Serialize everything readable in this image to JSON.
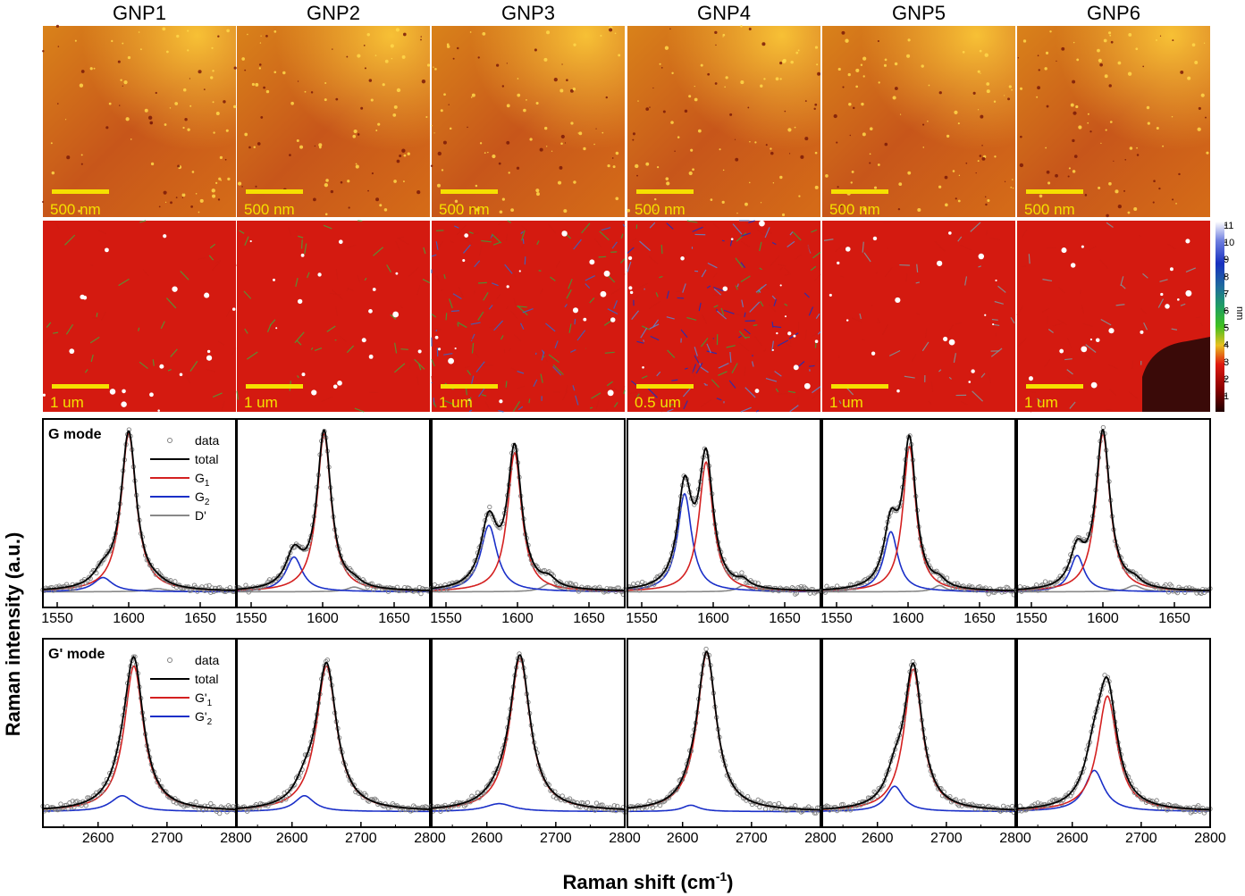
{
  "figure": {
    "columns": [
      "GNP1",
      "GNP2",
      "GNP3",
      "GNP4",
      "GNP5",
      "GNP6"
    ],
    "afm_scale_bars": [
      "500 nm",
      "500 nm",
      "500 nm",
      "500 nm",
      "500 nm",
      "500 nm"
    ],
    "height_scale_bars": [
      "1 um",
      "1 um",
      "1 um",
      "0.5 um",
      "1 um",
      "1 um"
    ],
    "colorbar": {
      "unit": "nm",
      "ticks": [
        "1",
        "2",
        "3",
        "4",
        "5",
        "6",
        "7",
        "8",
        "9",
        "10",
        "11"
      ]
    },
    "y_axis_label": "Raman intensity (a.u.)",
    "x_axis_label_main": "Raman shift (cm",
    "x_axis_label_sup": "-1",
    "x_axis_label_end": ")"
  },
  "chart_data": [
    {
      "type": "line",
      "title": "G mode",
      "xlim": [
        1540,
        1675
      ],
      "xticks": [
        1550,
        1600,
        1650
      ],
      "legend": [
        {
          "label": "data",
          "sub": "",
          "color": "#808080",
          "marker": "circle"
        },
        {
          "label": "total",
          "sub": "",
          "color": "#000000"
        },
        {
          "label": "G",
          "sub": "1",
          "color": "#d42020"
        },
        {
          "label": "G",
          "sub": "2",
          "color": "#1a2fc8"
        },
        {
          "label": "D'",
          "sub": "",
          "color": "#888888"
        }
      ],
      "legend_position": "top-right",
      "panels": [
        {
          "name": "GNP1",
          "g1": {
            "center": 1600,
            "amp": 1.0,
            "width": 6.5
          },
          "g2": {
            "center": 1582,
            "amp": 0.09,
            "width": 8
          },
          "dprime": {
            "center": 1620,
            "amp": 0.02,
            "width": 8
          }
        },
        {
          "name": "GNP2",
          "g1": {
            "center": 1601,
            "amp": 1.0,
            "width": 6
          },
          "g2": {
            "center": 1580,
            "amp": 0.22,
            "width": 7
          },
          "dprime": {
            "center": 1622,
            "amp": 0.03,
            "width": 6
          }
        },
        {
          "name": "GNP3",
          "g1": {
            "center": 1598,
            "amp": 0.88,
            "width": 6
          },
          "g2": {
            "center": 1580,
            "amp": 0.42,
            "width": 7
          },
          "dprime": {
            "center": 1622,
            "amp": 0.05,
            "width": 6
          }
        },
        {
          "name": "GNP4",
          "g1": {
            "center": 1595,
            "amp": 0.82,
            "width": 6
          },
          "g2": {
            "center": 1580,
            "amp": 0.62,
            "width": 6
          },
          "dprime": {
            "center": 1621,
            "amp": 0.04,
            "width": 5
          }
        },
        {
          "name": "GNP5",
          "g1": {
            "center": 1601,
            "amp": 0.92,
            "width": 5.5
          },
          "g2": {
            "center": 1588,
            "amp": 0.38,
            "width": 6
          },
          "dprime": {
            "center": 1622,
            "amp": 0.04,
            "width": 5
          }
        },
        {
          "name": "GNP6",
          "g1": {
            "center": 1600,
            "amp": 1.0,
            "width": 6
          },
          "g2": {
            "center": 1582,
            "amp": 0.23,
            "width": 6
          },
          "dprime": {
            "center": 1622,
            "amp": 0.04,
            "width": 6
          }
        }
      ]
    },
    {
      "type": "line",
      "title": "G' mode",
      "xlim": [
        2520,
        2800
      ],
      "xticks": [
        2600,
        2700,
        2800
      ],
      "legend": [
        {
          "label": "data",
          "sub": "",
          "color": "#808080",
          "marker": "circle"
        },
        {
          "label": "total",
          "sub": "",
          "color": "#000000"
        },
        {
          "label": "G'",
          "sub": "1",
          "color": "#d42020"
        },
        {
          "label": "G'",
          "sub": "2",
          "color": "#1a2fc8"
        }
      ],
      "legend_position": "top-right",
      "panels": [
        {
          "name": "GNP1",
          "g1": {
            "center": 2652,
            "amp": 0.92,
            "width": 17
          },
          "g2": {
            "center": 2635,
            "amp": 0.1,
            "width": 20
          }
        },
        {
          "name": "GNP2",
          "g1": {
            "center": 2650,
            "amp": 0.92,
            "width": 18
          },
          "g2": {
            "center": 2618,
            "amp": 0.1,
            "width": 17
          }
        },
        {
          "name": "GNP3",
          "g1": {
            "center": 2648,
            "amp": 0.97,
            "width": 18
          },
          "g2": {
            "center": 2618,
            "amp": 0.05,
            "width": 25
          }
        },
        {
          "name": "GNP4",
          "g1": {
            "center": 2635,
            "amp": 1.0,
            "width": 17
          },
          "g2": {
            "center": 2612,
            "amp": 0.04,
            "width": 15
          }
        },
        {
          "name": "GNP5",
          "g1": {
            "center": 2652,
            "amp": 0.9,
            "width": 16
          },
          "g2": {
            "center": 2625,
            "amp": 0.16,
            "width": 15
          }
        },
        {
          "name": "GNP6",
          "g1": {
            "center": 2651,
            "amp": 0.73,
            "width": 17
          },
          "g2": {
            "center": 2632,
            "amp": 0.26,
            "width": 17
          }
        }
      ]
    }
  ]
}
